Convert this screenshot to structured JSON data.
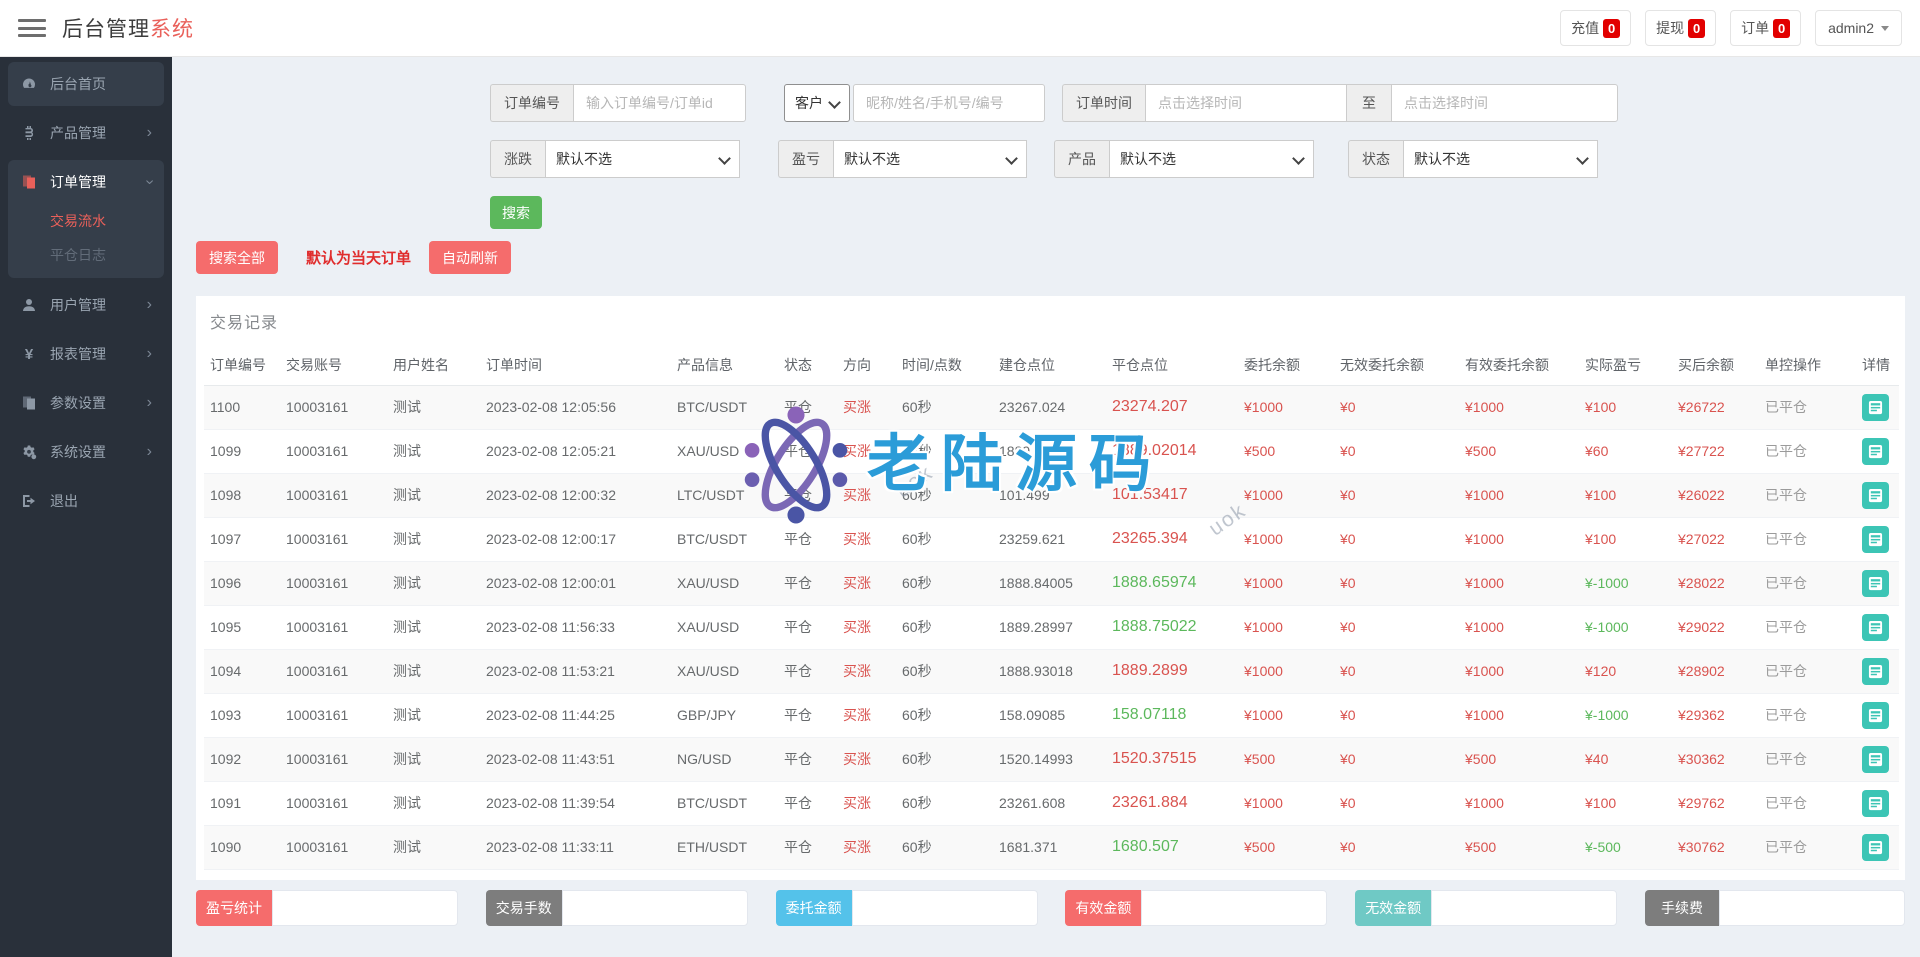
{
  "header": {
    "logo_main": "后台管理",
    "logo_accent": "系统",
    "nav_items": [
      {
        "key": "recharge",
        "label": "充值",
        "badge": "0"
      },
      {
        "key": "withdraw",
        "label": "提现",
        "badge": "0"
      },
      {
        "key": "orders",
        "label": "订单",
        "badge": "0"
      }
    ],
    "user": "admin2"
  },
  "sidebar": {
    "items": [
      {
        "key": "home",
        "label": "后台首页",
        "icon": "dashboard-icon",
        "boxed": true
      },
      {
        "key": "products",
        "label": "产品管理",
        "icon": "bitcoin-icon",
        "arrow": true
      },
      {
        "key": "orders",
        "label": "订单管理",
        "icon": "orders-icon",
        "arrow": true,
        "active": true,
        "children": [
          {
            "key": "trade-flow",
            "label": "交易流水",
            "active": true
          },
          {
            "key": "close-log",
            "label": "平仓日志",
            "active": false
          }
        ]
      },
      {
        "key": "users",
        "label": "用户管理",
        "icon": "user-icon",
        "arrow": true
      },
      {
        "key": "reports",
        "label": "报表管理",
        "icon": "yen-icon",
        "arrow": true
      },
      {
        "key": "params",
        "label": "参数设置",
        "icon": "copy-icon",
        "arrow": true
      },
      {
        "key": "system",
        "label": "系统设置",
        "icon": "gear-icon",
        "arrow": true
      },
      {
        "key": "logout",
        "label": "退出",
        "icon": "logout-icon"
      }
    ]
  },
  "filters": {
    "order_no_label": "订单编号",
    "order_no_placeholder": "输入订单编号/订单id",
    "customer_select": "客户",
    "customer_placeholder": "昵称/姓名/手机号/编号",
    "order_time_label": "订单时间",
    "time_placeholder": "点击选择时间",
    "to_label": "至",
    "rise_fall_label": "涨跌",
    "profit_label": "盈亏",
    "product_label": "产品",
    "status_label": "状态",
    "default_option": "默认不选",
    "search_button": "搜索"
  },
  "toolbar": {
    "search_all": "搜索全部",
    "default_today": "默认为当天订单",
    "auto_refresh": "自动刷新"
  },
  "panel": {
    "title": "交易记录"
  },
  "table": {
    "headers": [
      "订单编号",
      "交易账号",
      "用户姓名",
      "订单时间",
      "产品信息",
      "状态",
      "方向",
      "时间/点数",
      "建仓点位",
      "平仓点位",
      "委托余额",
      "无效委托余额",
      "有效委托余额",
      "实际盈亏",
      "买后余额",
      "单控操作",
      "详情"
    ],
    "rows": [
      {
        "id": "1100",
        "account": "10003161",
        "name": "测试",
        "time": "2023-02-08 12:05:56",
        "product": "BTC/USDT",
        "status": "平仓",
        "direction": "买涨",
        "duration": "60秒",
        "open": "23267.024",
        "close": "23274.207",
        "close_color": "red",
        "entrust": "¥1000",
        "invalid": "¥0",
        "valid": "¥1000",
        "profit": "¥100",
        "profit_color": "red",
        "balance": "¥26722",
        "control": "已平仓"
      },
      {
        "id": "1099",
        "account": "10003161",
        "name": "测试",
        "time": "2023-02-08 12:05:21",
        "product": "XAU/USD",
        "status": "平仓",
        "direction": "买涨",
        "duration": "60秒",
        "open": "1889.0198",
        "close": "1889.02014",
        "close_color": "red",
        "entrust": "¥500",
        "invalid": "¥0",
        "valid": "¥500",
        "profit": "¥60",
        "profit_color": "red",
        "balance": "¥27722",
        "control": "已平仓"
      },
      {
        "id": "1098",
        "account": "10003161",
        "name": "测试",
        "time": "2023-02-08 12:00:32",
        "product": "LTC/USDT",
        "status": "平仓",
        "direction": "买涨",
        "duration": "60秒",
        "open": "101.499",
        "close": "101.53417",
        "close_color": "red",
        "entrust": "¥1000",
        "invalid": "¥0",
        "valid": "¥1000",
        "profit": "¥100",
        "profit_color": "red",
        "balance": "¥26022",
        "control": "已平仓"
      },
      {
        "id": "1097",
        "account": "10003161",
        "name": "测试",
        "time": "2023-02-08 12:00:17",
        "product": "BTC/USDT",
        "status": "平仓",
        "direction": "买涨",
        "duration": "60秒",
        "open": "23259.621",
        "close": "23265.394",
        "close_color": "red",
        "entrust": "¥1000",
        "invalid": "¥0",
        "valid": "¥1000",
        "profit": "¥100",
        "profit_color": "red",
        "balance": "¥27022",
        "control": "已平仓"
      },
      {
        "id": "1096",
        "account": "10003161",
        "name": "测试",
        "time": "2023-02-08 12:00:01",
        "product": "XAU/USD",
        "status": "平仓",
        "direction": "买涨",
        "duration": "60秒",
        "open": "1888.84005",
        "close": "1888.65974",
        "close_color": "green",
        "entrust": "¥1000",
        "invalid": "¥0",
        "valid": "¥1000",
        "profit": "¥-1000",
        "profit_color": "green",
        "balance": "¥28022",
        "control": "已平仓"
      },
      {
        "id": "1095",
        "account": "10003161",
        "name": "测试",
        "time": "2023-02-08 11:56:33",
        "product": "XAU/USD",
        "status": "平仓",
        "direction": "买涨",
        "duration": "60秒",
        "open": "1889.28997",
        "close": "1888.75022",
        "close_color": "green",
        "entrust": "¥1000",
        "invalid": "¥0",
        "valid": "¥1000",
        "profit": "¥-1000",
        "profit_color": "green",
        "balance": "¥29022",
        "control": "已平仓"
      },
      {
        "id": "1094",
        "account": "10003161",
        "name": "测试",
        "time": "2023-02-08 11:53:21",
        "product": "XAU/USD",
        "status": "平仓",
        "direction": "买涨",
        "duration": "60秒",
        "open": "1888.93018",
        "close": "1889.2899",
        "close_color": "red",
        "entrust": "¥1000",
        "invalid": "¥0",
        "valid": "¥1000",
        "profit": "¥120",
        "profit_color": "red",
        "balance": "¥28902",
        "control": "已平仓"
      },
      {
        "id": "1093",
        "account": "10003161",
        "name": "测试",
        "time": "2023-02-08 11:44:25",
        "product": "GBP/JPY",
        "status": "平仓",
        "direction": "买涨",
        "duration": "60秒",
        "open": "158.09085",
        "close": "158.07118",
        "close_color": "green",
        "entrust": "¥1000",
        "invalid": "¥0",
        "valid": "¥1000",
        "profit": "¥-1000",
        "profit_color": "green",
        "balance": "¥29362",
        "control": "已平仓"
      },
      {
        "id": "1092",
        "account": "10003161",
        "name": "测试",
        "time": "2023-02-08 11:43:51",
        "product": "NG/USD",
        "status": "平仓",
        "direction": "买涨",
        "duration": "60秒",
        "open": "1520.14993",
        "close": "1520.37515",
        "close_color": "red",
        "entrust": "¥500",
        "invalid": "¥0",
        "valid": "¥500",
        "profit": "¥40",
        "profit_color": "red",
        "balance": "¥30362",
        "control": "已平仓"
      },
      {
        "id": "1091",
        "account": "10003161",
        "name": "测试",
        "time": "2023-02-08 11:39:54",
        "product": "BTC/USDT",
        "status": "平仓",
        "direction": "买涨",
        "duration": "60秒",
        "open": "23261.608",
        "close": "23261.884",
        "close_color": "red",
        "entrust": "¥1000",
        "invalid": "¥0",
        "valid": "¥1000",
        "profit": "¥100",
        "profit_color": "red",
        "balance": "¥29762",
        "control": "已平仓"
      },
      {
        "id": "1090",
        "account": "10003161",
        "name": "测试",
        "time": "2023-02-08 11:33:11",
        "product": "ETH/USDT",
        "status": "平仓",
        "direction": "买涨",
        "duration": "60秒",
        "open": "1681.371",
        "close": "1680.507",
        "close_color": "green",
        "entrust": "¥500",
        "invalid": "¥0",
        "valid": "¥500",
        "profit": "¥-500",
        "profit_color": "green",
        "balance": "¥30762",
        "control": "已平仓"
      }
    ]
  },
  "summary": [
    {
      "key": "profit-stat",
      "label": "盈亏统计",
      "color": "#f56c6c",
      "value": ""
    },
    {
      "key": "trade-lots",
      "label": "交易手数",
      "color": "#7d7d7d",
      "value": ""
    },
    {
      "key": "entrust-amount",
      "label": "委托金额",
      "color": "#54c2ea",
      "value": ""
    },
    {
      "key": "valid-amount",
      "label": "有效金额",
      "color": "#f56c6c",
      "value": ""
    },
    {
      "key": "invalid-amount",
      "label": "无效金额",
      "color": "#6fc9c5",
      "value": ""
    },
    {
      "key": "fee",
      "label": "手续费",
      "color": "#7d7d7d",
      "value": ""
    }
  ],
  "watermark": {
    "text": "老陆源码",
    "stamp": "uok"
  },
  "colors": {
    "accent_red": "#e9605a",
    "badge_red": "#e20000",
    "value_red": "#d9534f",
    "value_green": "#5cb85c",
    "detail_teal": "#3cc5b5",
    "search_green": "#5cb85c",
    "button_salmon": "#f56c6c",
    "watermark_blue": "#2b9cd8"
  }
}
